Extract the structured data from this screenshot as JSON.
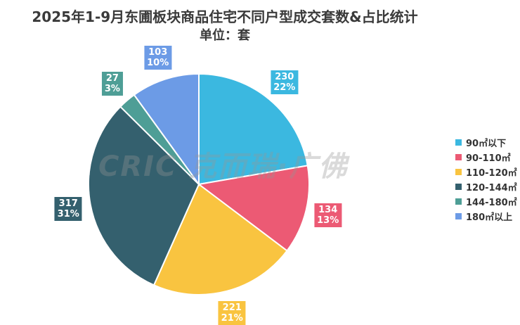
{
  "chart_data": {
    "type": "pie",
    "title": "2025年1-9月东圃板块商品住宅不同户型成交套数&占比统计",
    "subtitle": "单位：套",
    "categories": [
      "90㎡以下",
      "90-110㎡",
      "110-120㎡",
      "120-144㎡",
      "144-180㎡",
      "180㎡以上"
    ],
    "values": [
      230,
      134,
      221,
      317,
      27,
      103
    ],
    "percent_labels": [
      "22%",
      "13%",
      "21%",
      "31%",
      "3%",
      "10%"
    ],
    "colors": [
      "#3BB8E0",
      "#EC5A74",
      "#F9C440",
      "#34606E",
      "#4E9E96",
      "#6C9BE6"
    ],
    "start": "top, clockwise",
    "legend_position": "right"
  },
  "watermark": "CRIC 克而瑞·广佛"
}
